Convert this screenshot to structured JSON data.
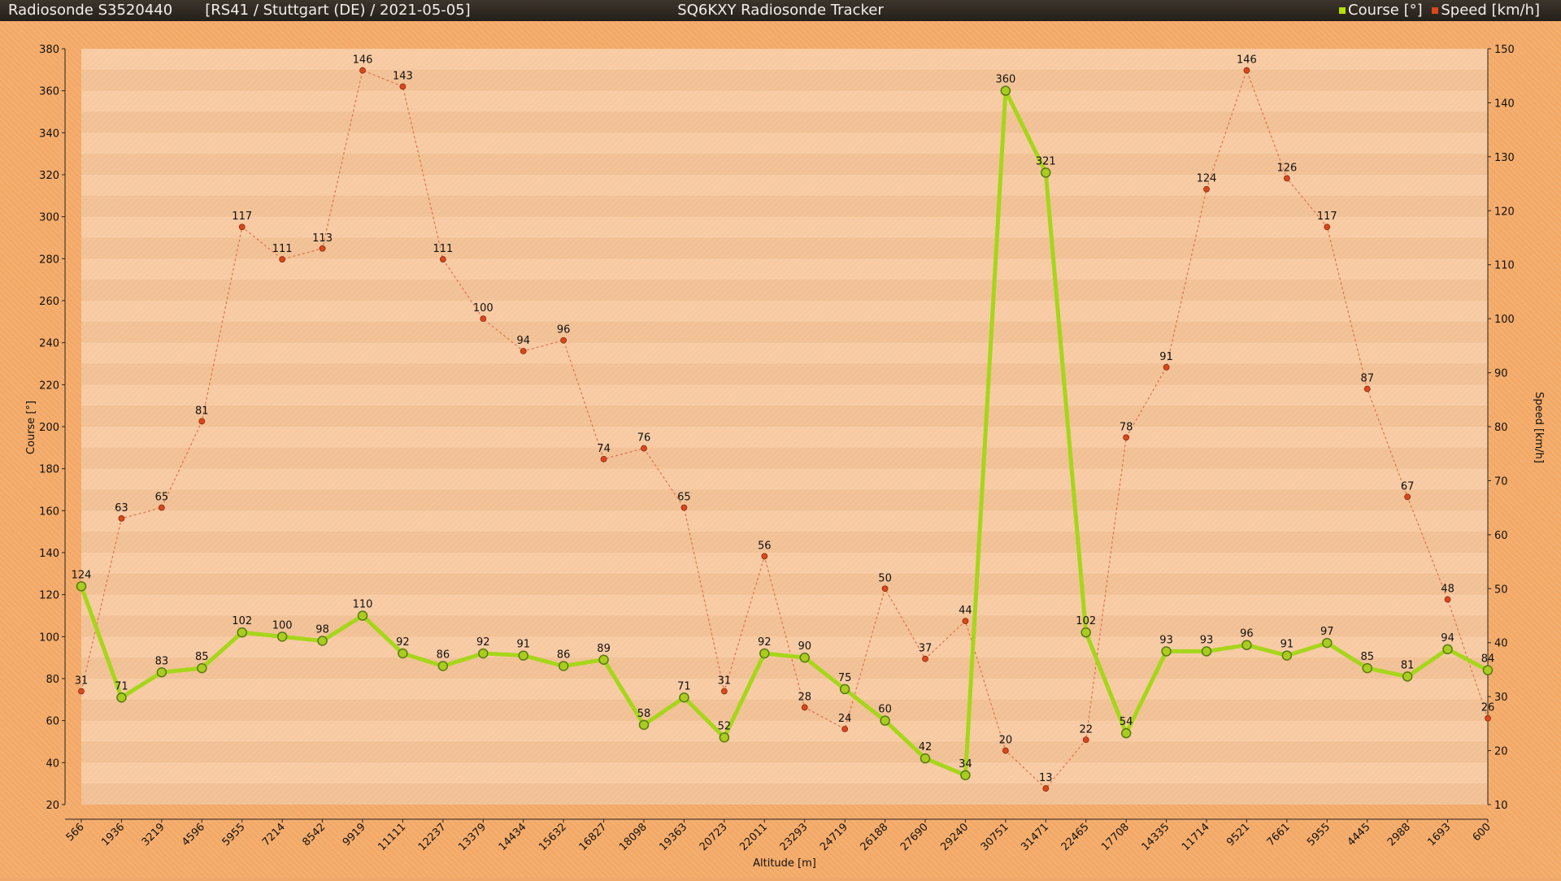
{
  "header": {
    "title_left": "Radiosonde S3520440",
    "info": "[RS41 / Stuttgart (DE) / 2021-05-05]",
    "title_center": "SQ6KXY Radiosonde Tracker"
  },
  "colors": {
    "course": "#a6d61a",
    "speed": "#d9471c",
    "header_bg": "#2e2822",
    "outer_bg": "#f3a865",
    "plot_bg": "#f7c79c"
  },
  "chart_data": {
    "type": "line",
    "title": "SQ6KXY Radiosonde Tracker",
    "xlabel": "Altitude [m]",
    "ylabel": "Course [°]",
    "y2label": "Speed [km/h]",
    "ylim": [
      20,
      380
    ],
    "y2lim": [
      10,
      150
    ],
    "yticks": [
      20,
      40,
      60,
      80,
      100,
      120,
      140,
      160,
      180,
      200,
      220,
      240,
      260,
      280,
      300,
      320,
      340,
      360,
      380
    ],
    "y2ticks": [
      10,
      20,
      30,
      40,
      50,
      60,
      70,
      80,
      90,
      100,
      110,
      120,
      130,
      140,
      150
    ],
    "grid": "horizontal bands",
    "legend_position": "top-right",
    "categories": [
      "566",
      "1936",
      "3219",
      "4596",
      "5955",
      "7214",
      "8542",
      "9919",
      "11111",
      "12237",
      "13379",
      "14434",
      "15632",
      "16827",
      "18098",
      "19363",
      "20723",
      "22011",
      "23293",
      "24719",
      "26188",
      "27690",
      "29240",
      "30751",
      "31471",
      "22465",
      "17708",
      "14335",
      "11714",
      "9521",
      "7661",
      "5955",
      "4445",
      "2988",
      "1693",
      "600"
    ],
    "series": [
      {
        "name": "Course [°]",
        "axis": "left",
        "values": [
          124,
          71,
          83,
          85,
          102,
          100,
          98,
          110,
          92,
          86,
          92,
          91,
          86,
          89,
          58,
          71,
          52,
          92,
          90,
          75,
          60,
          42,
          34,
          360,
          321,
          102,
          54,
          93,
          93,
          96,
          91,
          97,
          85,
          81,
          94,
          84
        ]
      },
      {
        "name": "Speed [km/h]",
        "axis": "right",
        "values": [
          31,
          63,
          65,
          81,
          117,
          111,
          113,
          146,
          143,
          111,
          100,
          94,
          96,
          74,
          76,
          65,
          31,
          56,
          28,
          24,
          50,
          37,
          44,
          20,
          13,
          22,
          78,
          91,
          124,
          146,
          126,
          117,
          87,
          67,
          48,
          26
        ]
      }
    ]
  }
}
